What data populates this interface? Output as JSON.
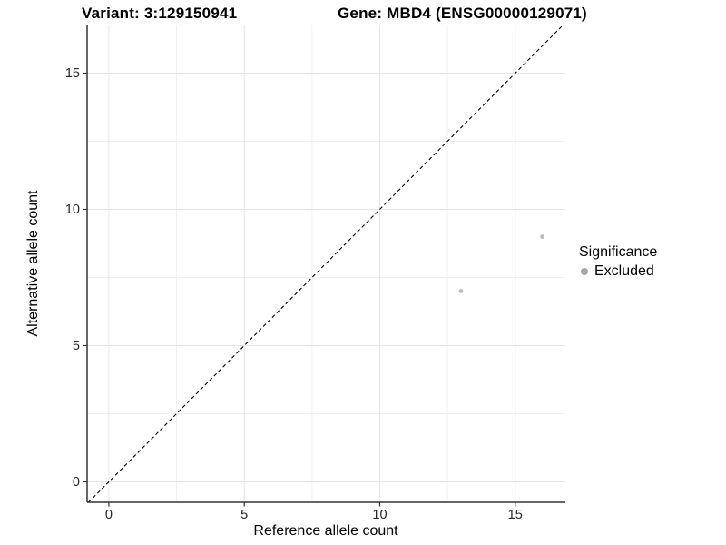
{
  "header": {
    "variant_title": "Variant: 3:129150941",
    "gene_title": "Gene: MBD4 (ENSG00000129071)"
  },
  "chart_data": {
    "type": "scatter",
    "xlabel": "Reference allele count",
    "ylabel": "Alternative allele count",
    "xlim": [
      -0.8,
      16.85
    ],
    "ylim": [
      -0.75,
      16.75
    ],
    "x_ticks": [
      0,
      5,
      10,
      15
    ],
    "y_ticks": [
      0,
      5,
      10,
      15
    ],
    "x_minor_ticks": [
      2.5,
      7.5,
      12.5
    ],
    "y_minor_ticks": [
      2.5,
      7.5,
      12.5
    ],
    "grid": "major+minor",
    "identity_line": {
      "equation": "y = x",
      "style": "dashed",
      "color": "#000000"
    },
    "series": [
      {
        "name": "Excluded",
        "color": "#bdbdbd",
        "points": [
          {
            "x": 13,
            "y": 7
          },
          {
            "x": 16,
            "y": 9
          }
        ]
      }
    ],
    "legend": {
      "title": "Significance",
      "position": "right",
      "items": [
        {
          "label": "Excluded",
          "color": "#a6a6a6",
          "marker": "circle"
        }
      ]
    }
  },
  "colors": {
    "background": "#ffffff",
    "axis_line": "#333333",
    "grid_major": "#e6e6e6",
    "grid_minor": "#f1f1f1",
    "tick_mark": "#333333",
    "tick_label": "#262626"
  }
}
